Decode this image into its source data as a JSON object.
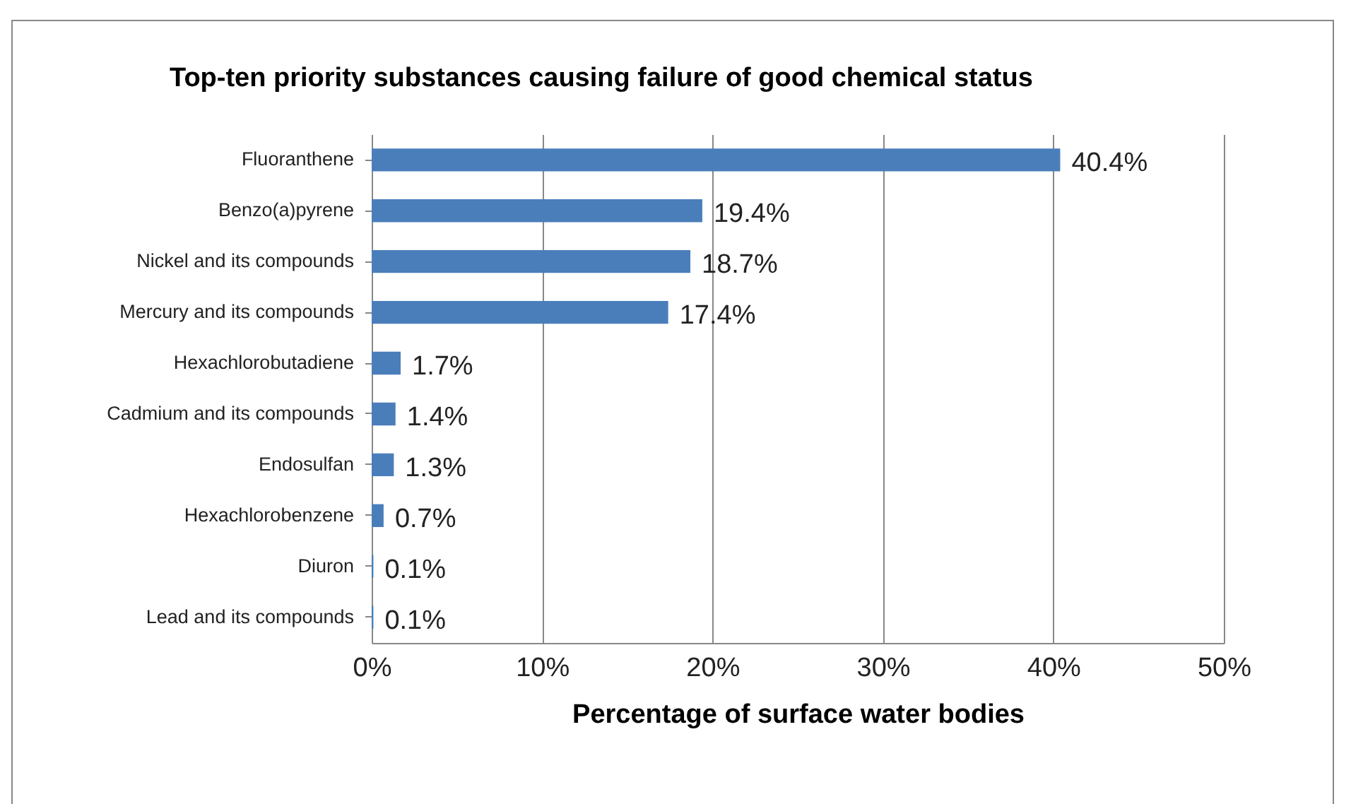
{
  "chart_data": {
    "type": "bar",
    "orientation": "horizontal",
    "title": "Top-ten priority substances causing failure of good chemical status",
    "xlabel": "Percentage of surface water bodies",
    "categories": [
      "Fluoranthene",
      "Benzo(a)pyrene",
      "Nickel and its compounds",
      "Mercury and its compounds",
      "Hexachlorobutadiene",
      "Cadmium and its compounds",
      "Endosulfan",
      "Hexachlorobenzene",
      "Diuron",
      "Lead and its compounds"
    ],
    "values": [
      40.4,
      19.4,
      18.7,
      17.4,
      1.7,
      1.4,
      1.3,
      0.7,
      0.1,
      0.1
    ],
    "value_labels": [
      "40.4%",
      "19.4%",
      "18.7%",
      "17.4%",
      "1.7%",
      "1.4%",
      "1.3%",
      "0.7%",
      "0.1%",
      "0.1%"
    ],
    "color": "#4a7ebb",
    "xlim": [
      0,
      50
    ],
    "xticks": [
      {
        "value": 0,
        "label": "0%"
      },
      {
        "value": 10,
        "label": "10%"
      },
      {
        "value": 20,
        "label": "20%"
      },
      {
        "value": 30,
        "label": "30%"
      },
      {
        "value": 40,
        "label": "40%"
      },
      {
        "value": 50,
        "label": "50%"
      }
    ],
    "grid": "x"
  }
}
